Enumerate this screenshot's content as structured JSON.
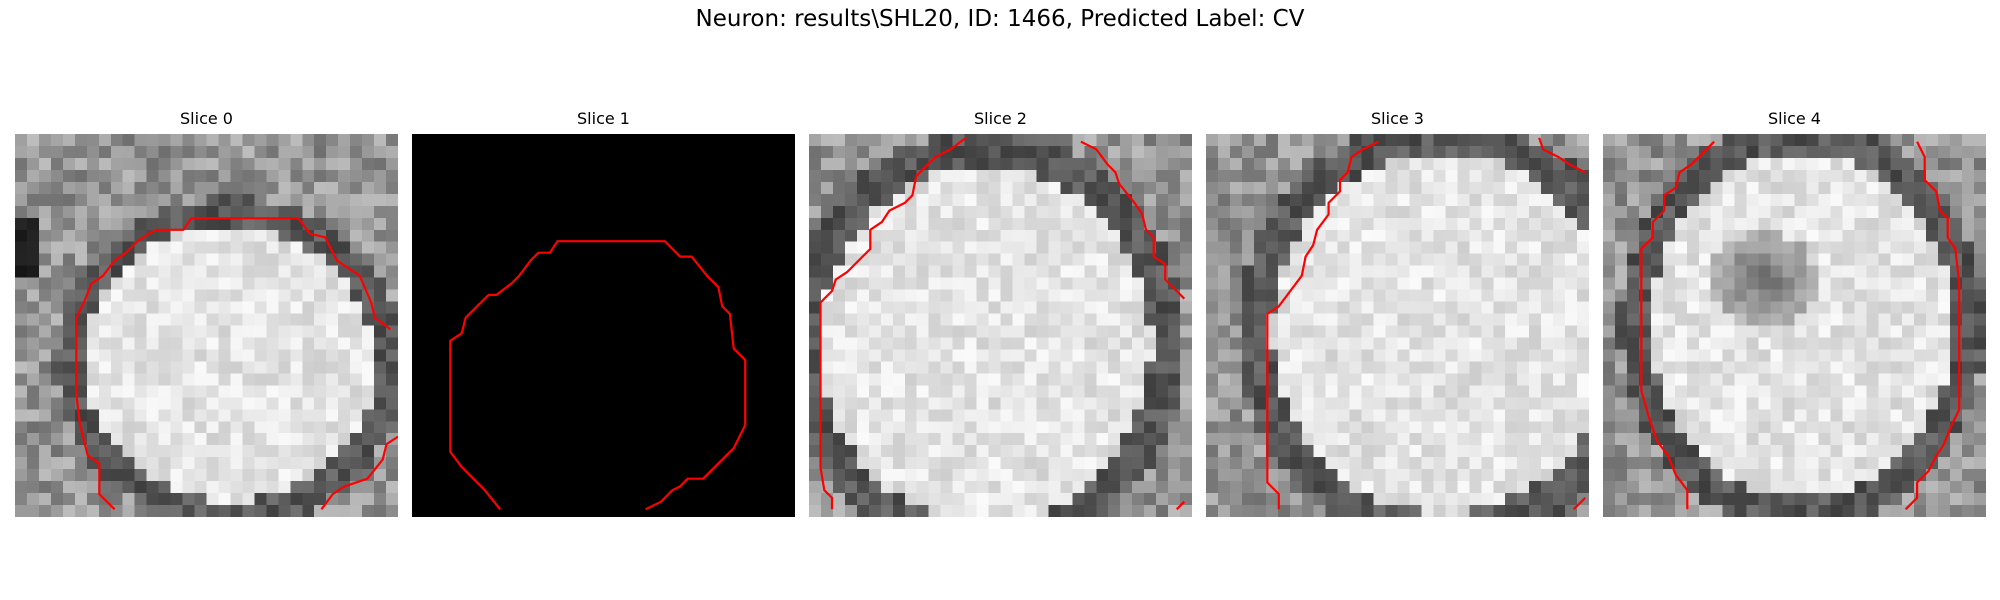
{
  "figure": {
    "title": "Neuron: results\\SHL20, ID: 1466, Predicted Label: CV"
  },
  "colors": {
    "background": "#ffffff",
    "contour": "#ff0000",
    "empty_slice": "#000000"
  },
  "slices": [
    {
      "title": "Slice 0",
      "image": "grayscale-neuron-patch",
      "contour": [
        [
          0.26,
          0.98
        ],
        [
          0.22,
          0.94
        ],
        [
          0.22,
          0.86
        ],
        [
          0.19,
          0.84
        ],
        [
          0.17,
          0.76
        ],
        [
          0.16,
          0.68
        ],
        [
          0.16,
          0.58
        ],
        [
          0.16,
          0.48
        ],
        [
          0.18,
          0.44
        ],
        [
          0.2,
          0.39
        ],
        [
          0.23,
          0.37
        ],
        [
          0.26,
          0.33
        ],
        [
          0.29,
          0.31
        ],
        [
          0.32,
          0.28
        ],
        [
          0.35,
          0.26
        ],
        [
          0.37,
          0.25
        ],
        [
          0.44,
          0.25
        ],
        [
          0.46,
          0.22
        ],
        [
          0.74,
          0.22
        ],
        [
          0.77,
          0.26
        ],
        [
          0.81,
          0.27
        ],
        [
          0.84,
          0.33
        ],
        [
          0.87,
          0.35
        ],
        [
          0.9,
          0.37
        ],
        [
          0.93,
          0.44
        ],
        [
          0.94,
          0.48
        ],
        [
          0.98,
          0.51
        ]
      ],
      "contour2": [
        [
          0.8,
          0.98
        ],
        [
          0.83,
          0.94
        ],
        [
          0.86,
          0.92
        ],
        [
          0.92,
          0.9
        ],
        [
          0.96,
          0.85
        ],
        [
          0.97,
          0.81
        ],
        [
          1.0,
          0.79
        ]
      ]
    },
    {
      "title": "Slice 1",
      "image": "black-empty-patch",
      "contour": [
        [
          0.23,
          0.98
        ],
        [
          0.19,
          0.93
        ],
        [
          0.13,
          0.87
        ],
        [
          0.1,
          0.83
        ],
        [
          0.1,
          0.54
        ],
        [
          0.13,
          0.52
        ],
        [
          0.14,
          0.48
        ],
        [
          0.17,
          0.45
        ],
        [
          0.2,
          0.42
        ],
        [
          0.22,
          0.42
        ],
        [
          0.26,
          0.39
        ],
        [
          0.28,
          0.37
        ],
        [
          0.31,
          0.33
        ],
        [
          0.33,
          0.31
        ],
        [
          0.36,
          0.31
        ],
        [
          0.38,
          0.28
        ],
        [
          0.66,
          0.28
        ],
        [
          0.7,
          0.32
        ],
        [
          0.73,
          0.32
        ],
        [
          0.77,
          0.37
        ],
        [
          0.8,
          0.4
        ],
        [
          0.81,
          0.45
        ],
        [
          0.83,
          0.47
        ],
        [
          0.84,
          0.56
        ],
        [
          0.87,
          0.59
        ],
        [
          0.87,
          0.76
        ],
        [
          0.85,
          0.8
        ],
        [
          0.84,
          0.82
        ],
        [
          0.82,
          0.84
        ],
        [
          0.79,
          0.87
        ],
        [
          0.76,
          0.9
        ],
        [
          0.72,
          0.9
        ],
        [
          0.7,
          0.92
        ],
        [
          0.68,
          0.93
        ],
        [
          0.65,
          0.96
        ],
        [
          0.61,
          0.98
        ]
      ]
    },
    {
      "title": "Slice 2",
      "image": "grayscale-neuron-patch",
      "contour": [
        [
          0.06,
          0.98
        ],
        [
          0.06,
          0.95
        ],
        [
          0.04,
          0.93
        ],
        [
          0.03,
          0.87
        ],
        [
          0.03,
          0.7
        ],
        [
          0.03,
          0.56
        ],
        [
          0.03,
          0.44
        ],
        [
          0.06,
          0.41
        ],
        [
          0.07,
          0.38
        ],
        [
          0.1,
          0.36
        ],
        [
          0.13,
          0.33
        ],
        [
          0.16,
          0.3
        ],
        [
          0.16,
          0.25
        ],
        [
          0.19,
          0.23
        ],
        [
          0.21,
          0.2
        ],
        [
          0.25,
          0.18
        ],
        [
          0.27,
          0.16
        ],
        [
          0.28,
          0.11
        ],
        [
          0.33,
          0.06
        ],
        [
          0.37,
          0.04
        ],
        [
          0.41,
          0.01
        ]
      ],
      "contour2": [
        [
          0.71,
          0.02
        ],
        [
          0.75,
          0.04
        ],
        [
          0.78,
          0.08
        ],
        [
          0.8,
          0.1
        ],
        [
          0.81,
          0.13
        ],
        [
          0.85,
          0.18
        ],
        [
          0.87,
          0.21
        ],
        [
          0.88,
          0.25
        ],
        [
          0.9,
          0.27
        ],
        [
          0.9,
          0.32
        ],
        [
          0.93,
          0.34
        ],
        [
          0.93,
          0.38
        ],
        [
          0.96,
          0.41
        ],
        [
          0.98,
          0.43
        ]
      ],
      "contour3": [
        [
          0.96,
          0.98
        ],
        [
          0.98,
          0.96
        ]
      ]
    },
    {
      "title": "Slice 3",
      "image": "grayscale-neuron-patch",
      "contour": [
        [
          0.19,
          0.98
        ],
        [
          0.19,
          0.94
        ],
        [
          0.16,
          0.91
        ],
        [
          0.16,
          0.62
        ],
        [
          0.16,
          0.47
        ],
        [
          0.19,
          0.45
        ],
        [
          0.22,
          0.41
        ],
        [
          0.25,
          0.37
        ],
        [
          0.26,
          0.32
        ],
        [
          0.28,
          0.29
        ],
        [
          0.29,
          0.25
        ],
        [
          0.32,
          0.21
        ],
        [
          0.32,
          0.18
        ],
        [
          0.35,
          0.15
        ],
        [
          0.35,
          0.12
        ],
        [
          0.37,
          0.1
        ],
        [
          0.38,
          0.06
        ],
        [
          0.41,
          0.04
        ],
        [
          0.45,
          0.02
        ]
      ],
      "contour2": [
        [
          0.87,
          0.01
        ],
        [
          0.88,
          0.04
        ],
        [
          0.92,
          0.06
        ],
        [
          0.95,
          0.08
        ],
        [
          0.99,
          0.1
        ]
      ],
      "contour3": [
        [
          0.96,
          0.98
        ],
        [
          0.99,
          0.95
        ]
      ]
    },
    {
      "title": "Slice 4",
      "image": "grayscale-neuron-patch-dark-center",
      "contour": [
        [
          0.22,
          0.98
        ],
        [
          0.22,
          0.93
        ],
        [
          0.19,
          0.89
        ],
        [
          0.17,
          0.84
        ],
        [
          0.14,
          0.8
        ],
        [
          0.12,
          0.74
        ],
        [
          0.1,
          0.67
        ],
        [
          0.1,
          0.49
        ],
        [
          0.1,
          0.36
        ],
        [
          0.1,
          0.3
        ],
        [
          0.13,
          0.27
        ],
        [
          0.13,
          0.23
        ],
        [
          0.16,
          0.2
        ],
        [
          0.16,
          0.16
        ],
        [
          0.19,
          0.14
        ],
        [
          0.2,
          0.1
        ],
        [
          0.23,
          0.08
        ],
        [
          0.26,
          0.05
        ],
        [
          0.29,
          0.02
        ]
      ],
      "contour2": [
        [
          0.82,
          0.02
        ],
        [
          0.84,
          0.06
        ],
        [
          0.84,
          0.12
        ],
        [
          0.87,
          0.15
        ],
        [
          0.88,
          0.2
        ],
        [
          0.9,
          0.22
        ],
        [
          0.9,
          0.27
        ],
        [
          0.92,
          0.3
        ],
        [
          0.93,
          0.39
        ],
        [
          0.93,
          0.58
        ],
        [
          0.93,
          0.72
        ],
        [
          0.91,
          0.76
        ],
        [
          0.89,
          0.81
        ],
        [
          0.87,
          0.84
        ],
        [
          0.85,
          0.88
        ],
        [
          0.82,
          0.91
        ],
        [
          0.82,
          0.95
        ],
        [
          0.79,
          0.98
        ]
      ]
    }
  ]
}
